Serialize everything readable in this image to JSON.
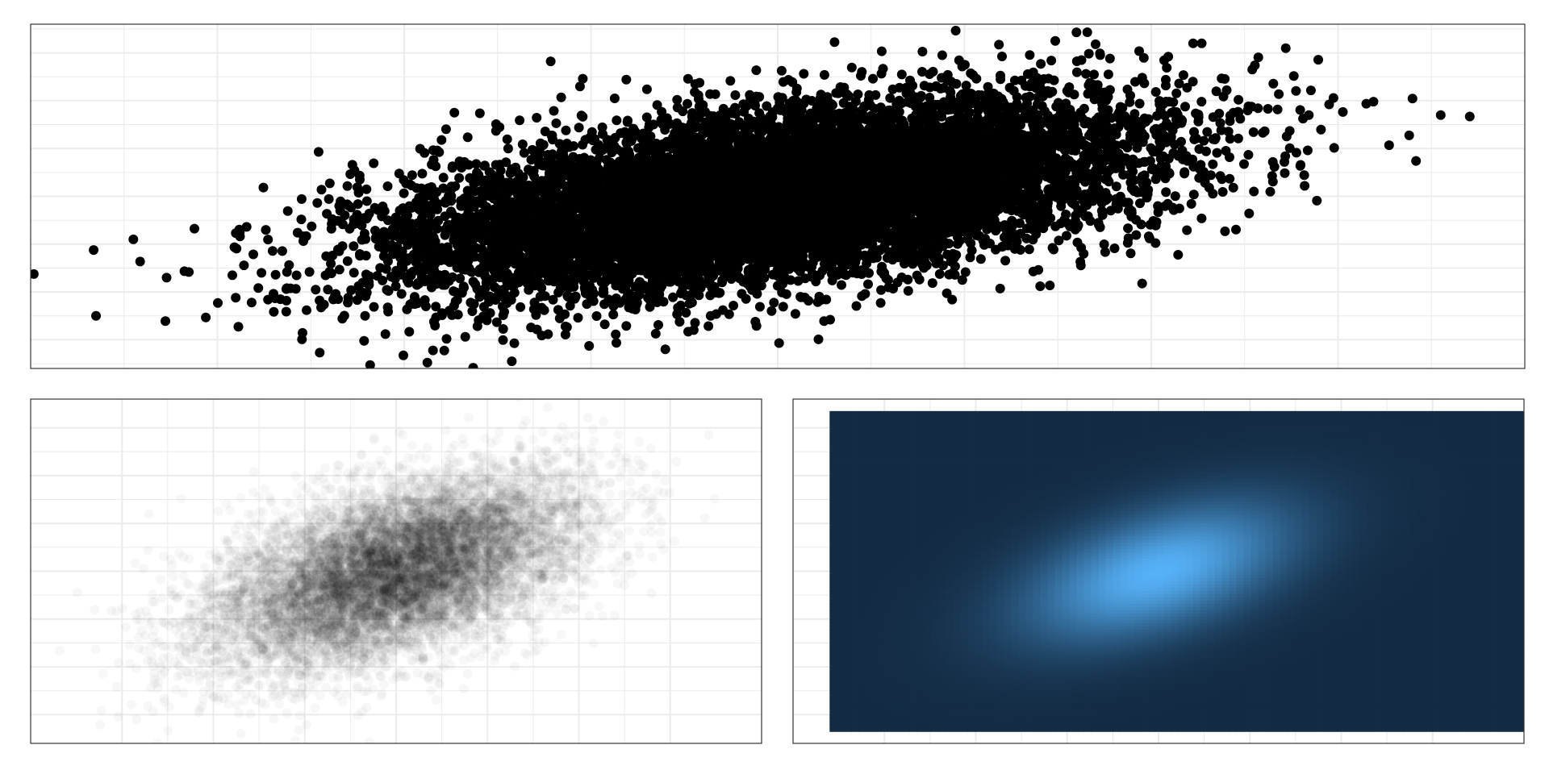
{
  "colors": {
    "background": "#ffffff",
    "grid": "#ebebeb",
    "frame": "#333333",
    "point": "#000000",
    "density_low": "#132b43",
    "density_high": "#56b1f7"
  },
  "chart_data": [
    {
      "type": "scatter",
      "name_hint": "overplotted-scatter",
      "n_points": 10000,
      "distribution": {
        "kind": "bivariate-normal",
        "x_mean": 0.0,
        "x_sd": 1.0,
        "y_mean": 0.0,
        "y_sd": 1.0,
        "correlation": 0.5
      },
      "xlim": [
        -4.0,
        4.0
      ],
      "ylim": [
        -3.6,
        3.6
      ],
      "point_opacity": 1.0,
      "point_size": "large",
      "grid": true,
      "x_gridlines_major": [
        -3,
        -2,
        -1,
        0,
        1,
        2,
        3
      ],
      "x_gridlines_minor": [
        -3.5,
        -2.5,
        -1.5,
        -0.5,
        0.5,
        1.5,
        2.5,
        3.5
      ],
      "y_gridlines_major": [
        -3,
        -2,
        -1,
        0,
        1,
        2,
        3
      ],
      "y_gridlines_minor": [
        -3.5,
        -2.5,
        -1.5,
        -0.5,
        0.5,
        1.5,
        2.5,
        3.5
      ],
      "labelled_outliers": [
        {
          "x": -3.65,
          "y": -2.5
        },
        {
          "x": -3.45,
          "y": -0.9
        },
        {
          "x": -2.88,
          "y": -0.75
        },
        {
          "x": -2.92,
          "y": -1.65
        },
        {
          "x": 3.55,
          "y": 1.7
        },
        {
          "x": 2.72,
          "y": 3.1
        },
        {
          "x": 2.27,
          "y": 3.2
        }
      ],
      "title": "",
      "xlabel": "",
      "ylabel": ""
    },
    {
      "type": "scatter",
      "name_hint": "transparent-scatter",
      "n_points": 10000,
      "distribution": {
        "kind": "bivariate-normal",
        "x_mean": 0.0,
        "x_sd": 1.0,
        "y_mean": 0.0,
        "y_sd": 1.0,
        "correlation": 0.5
      },
      "xlim": [
        -4.0,
        4.0
      ],
      "ylim": [
        -3.6,
        3.6
      ],
      "point_opacity": 0.03,
      "point_size": "medium",
      "grid": true,
      "x_gridlines_major": [
        -3,
        -2,
        -1,
        0,
        1,
        2,
        3
      ],
      "x_gridlines_minor": [
        -2.5,
        -1.5,
        -0.5,
        0.5,
        1.5,
        2.5
      ],
      "y_gridlines_major": [
        -3,
        -2,
        -1,
        0,
        1,
        2,
        3
      ],
      "y_gridlines_minor": [
        -2.5,
        -1.5,
        -0.5,
        0.5,
        1.5,
        2.5
      ],
      "title": "",
      "xlabel": "",
      "ylabel": ""
    },
    {
      "type": "heatmap",
      "name_hint": "2d-density-raster",
      "distribution": {
        "kind": "bivariate-normal",
        "x_mean": 0.0,
        "x_sd": 1.0,
        "y_mean": 0.0,
        "y_sd": 1.0,
        "correlation": 0.5
      },
      "xlim": [
        -4.0,
        4.0
      ],
      "ylim": [
        -3.6,
        3.6
      ],
      "raster_xlim": [
        -3.6,
        4.35
      ],
      "raster_ylim": [
        -3.35,
        3.35
      ],
      "grid_resolution": 100,
      "color_low": "#132b43",
      "color_high": "#56b1f7",
      "grid": true,
      "x_gridlines_major": [
        -3,
        -2,
        -1,
        0,
        1,
        2,
        3
      ],
      "x_gridlines_minor": [
        -2.5,
        -1.5,
        -0.5,
        0.5,
        1.5,
        2.5
      ],
      "y_gridlines_major": [
        -3,
        -2,
        -1,
        0,
        1,
        2,
        3
      ],
      "y_gridlines_minor": [
        -2.5,
        -1.5,
        -0.5,
        0.5,
        1.5,
        2.5
      ],
      "title": "",
      "xlabel": "",
      "ylabel": ""
    }
  ]
}
